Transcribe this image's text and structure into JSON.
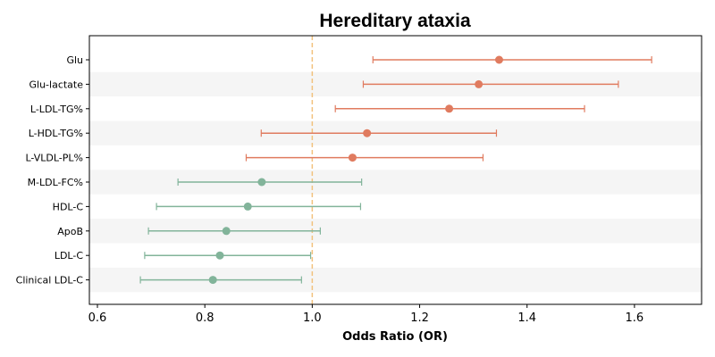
{
  "chart_data": {
    "type": "forest",
    "title": "Hereditary ataxia",
    "xlabel": "Odds Ratio (OR)",
    "ylabel": "",
    "xlim": [
      0.585,
      1.725
    ],
    "xticks": [
      "0.6",
      "0.8",
      "1.0",
      "1.2",
      "1.4",
      "1.6"
    ],
    "reference_line": 1.0,
    "alternating_row_shading": true,
    "grid": false,
    "colors": {
      "positive": "#E07B5F",
      "negative": "#82B49A",
      "reference": "#F2C27E",
      "band": "#F5F5F5"
    },
    "rows": [
      {
        "label": "Glu",
        "or": 1.348,
        "lower": 1.113,
        "upper": 1.632,
        "group": "positive"
      },
      {
        "label": "Glu-lactate",
        "or": 1.31,
        "lower": 1.095,
        "upper": 1.57,
        "group": "positive"
      },
      {
        "label": "L-LDL-TG%",
        "or": 1.255,
        "lower": 1.043,
        "upper": 1.507,
        "group": "positive"
      },
      {
        "label": "L-HDL-TG%",
        "or": 1.102,
        "lower": 0.905,
        "upper": 1.343,
        "group": "positive"
      },
      {
        "label": "L-VLDL-PL%",
        "or": 1.075,
        "lower": 0.877,
        "upper": 1.318,
        "group": "positive"
      },
      {
        "label": "M-LDL-FC%",
        "or": 0.906,
        "lower": 0.75,
        "upper": 1.092,
        "group": "negative"
      },
      {
        "label": "HDL-C",
        "or": 0.88,
        "lower": 0.71,
        "upper": 1.09,
        "group": "negative"
      },
      {
        "label": "ApoB",
        "or": 0.84,
        "lower": 0.695,
        "upper": 1.015,
        "group": "negative"
      },
      {
        "label": "LDL-C",
        "or": 0.828,
        "lower": 0.688,
        "upper": 0.997,
        "group": "negative"
      },
      {
        "label": "Clinical LDL-C",
        "or": 0.815,
        "lower": 0.68,
        "upper": 0.98,
        "group": "negative"
      }
    ]
  }
}
